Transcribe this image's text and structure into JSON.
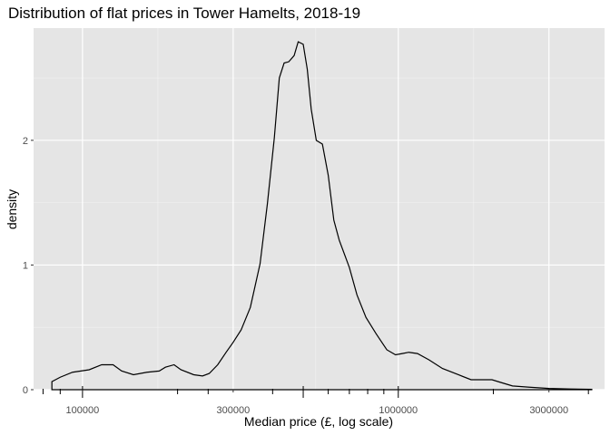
{
  "chart_data": {
    "type": "area",
    "title": "Distribution of flat prices in Tower Hamelts, 2018-19",
    "xlabel": "Median price (£, log scale)",
    "ylabel": "density",
    "x_scale": "log10",
    "xlim": [
      70000,
      4500000
    ],
    "ylim": [
      0,
      2.9
    ],
    "x_ticks": [
      {
        "value": 100000,
        "label": "100000"
      },
      {
        "value": 300000,
        "label": "300000"
      },
      {
        "value": 1000000,
        "label": "1000000"
      },
      {
        "value": 3000000,
        "label": "3000000"
      }
    ],
    "x_minor_gridlines": [
      173205,
      547723,
      1732051
    ],
    "y_ticks": [
      {
        "value": 0,
        "label": "0"
      },
      {
        "value": 1,
        "label": "1"
      },
      {
        "value": 2,
        "label": "2"
      }
    ],
    "y_minor_gridlines": [
      0.5,
      1.5,
      2.5
    ],
    "rug_long": [
      100000,
      500000,
      1000000
    ],
    "rug_short": [
      75000,
      85000,
      200000,
      250000,
      400000,
      600000,
      700000,
      800000,
      900000,
      2000000,
      4000000
    ],
    "grid": true,
    "panel_color": "#e5e5e5",
    "line_color": "#000000",
    "series": [
      {
        "x": [
          80000,
          85000,
          93000,
          105000,
          115000,
          125000,
          133000,
          145000,
          160000,
          175000,
          183000,
          195000,
          205000,
          225000,
          240000,
          252000,
          268000,
          285000,
          300000,
          318000,
          340000,
          365000,
          385000,
          405000,
          420000,
          435000,
          450000,
          468000,
          482000,
          500000,
          515000,
          530000,
          550000,
          575000,
          600000,
          625000,
          650000,
          700000,
          740000,
          790000,
          850000,
          920000,
          980000,
          1030000,
          1080000,
          1150000,
          1250000,
          1380000,
          1550000,
          1700000,
          1850000,
          1980000,
          2100000,
          2300000,
          2600000,
          3000000,
          3500000,
          4100000
        ],
        "y": [
          0.065,
          0.1,
          0.14,
          0.16,
          0.2,
          0.2,
          0.15,
          0.12,
          0.14,
          0.15,
          0.18,
          0.2,
          0.16,
          0.12,
          0.11,
          0.13,
          0.2,
          0.3,
          0.38,
          0.48,
          0.66,
          1.01,
          1.49,
          2.02,
          2.5,
          2.62,
          2.63,
          2.68,
          2.79,
          2.77,
          2.57,
          2.25,
          2.0,
          1.97,
          1.72,
          1.36,
          1.2,
          0.98,
          0.76,
          0.58,
          0.45,
          0.32,
          0.28,
          0.29,
          0.3,
          0.29,
          0.24,
          0.17,
          0.12,
          0.08,
          0.08,
          0.08,
          0.06,
          0.03,
          0.02,
          0.01,
          0.006,
          0.003
        ]
      }
    ]
  }
}
